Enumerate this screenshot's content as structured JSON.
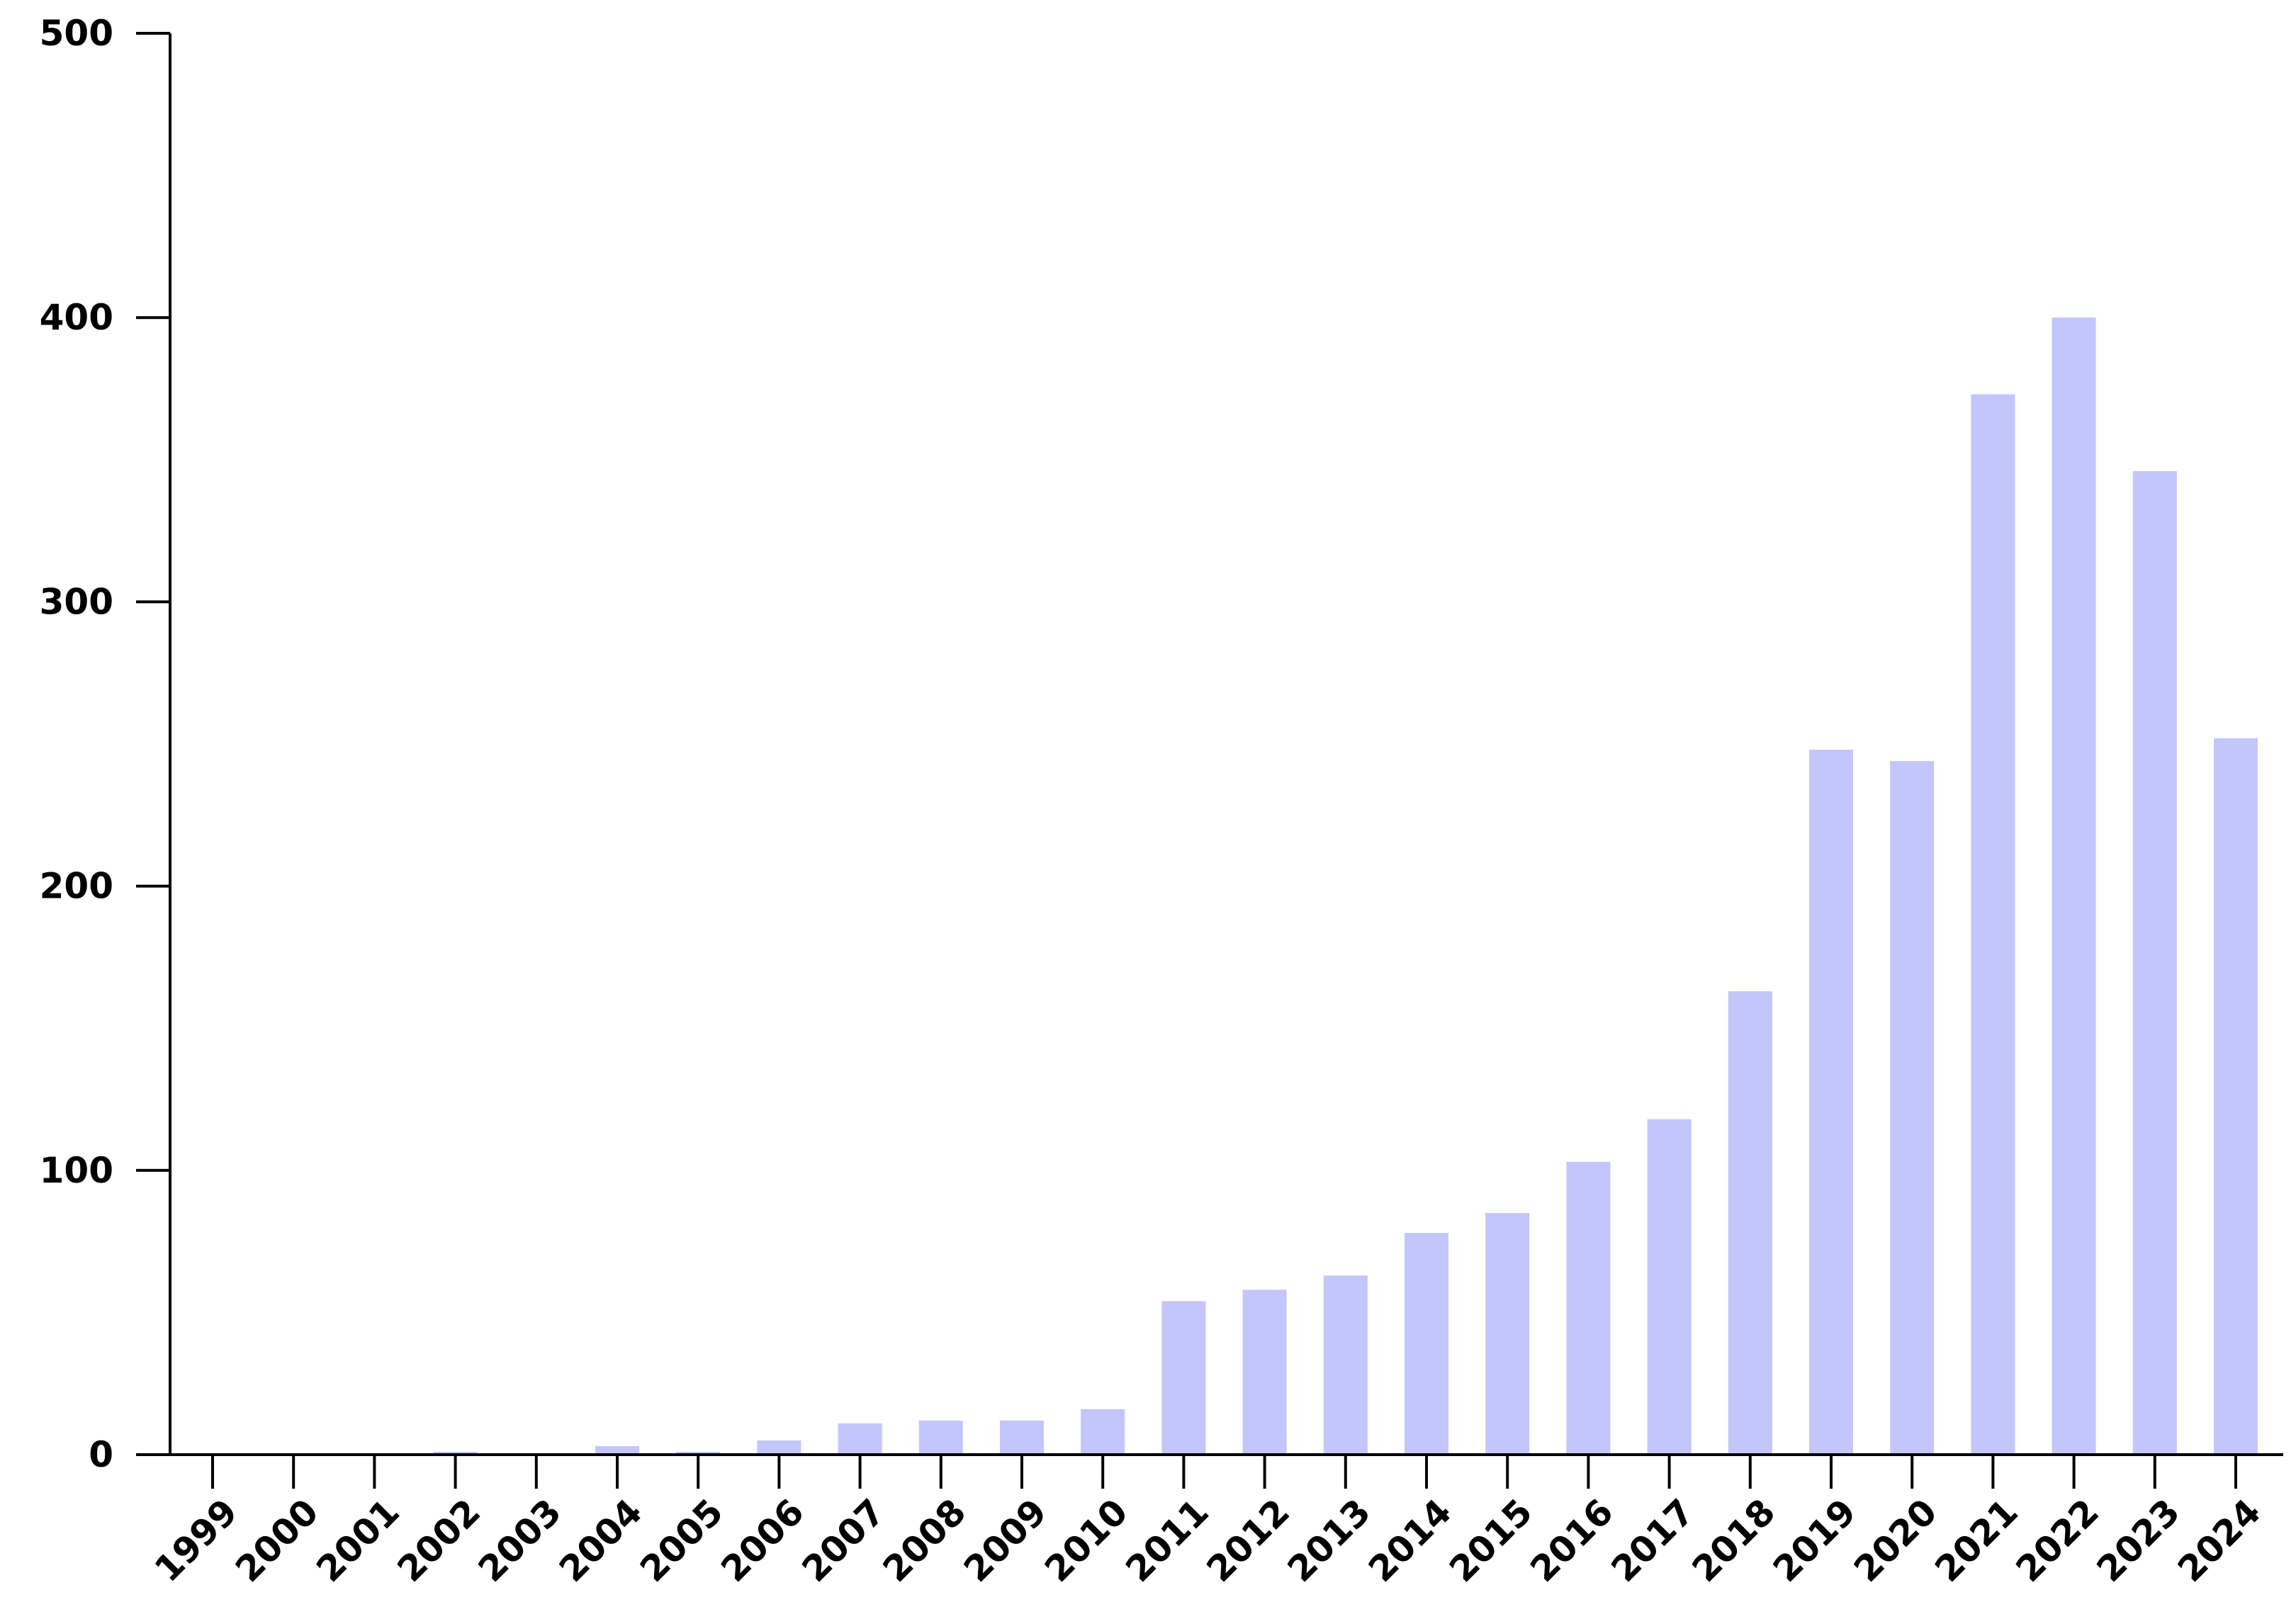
{
  "chart_data": {
    "type": "bar",
    "title": "",
    "xlabel": "",
    "ylabel": "",
    "categories": [
      "1999",
      "2000",
      "2001",
      "2002",
      "2003",
      "2004",
      "2005",
      "2006",
      "2007",
      "2008",
      "2009",
      "2010",
      "2011",
      "2012",
      "2013",
      "2014",
      "2015",
      "2016",
      "2017",
      "2018",
      "2019",
      "2020",
      "2021",
      "2022",
      "2023",
      "2024"
    ],
    "values": [
      0,
      0,
      0,
      1,
      0,
      3,
      1,
      5,
      11,
      12,
      12,
      16,
      54,
      58,
      63,
      78,
      85,
      103,
      118,
      163,
      248,
      244,
      373,
      400,
      346,
      252
    ],
    "ylim": [
      0,
      500
    ],
    "yticks": [
      0,
      100,
      200,
      300,
      400,
      500
    ],
    "bar_color": "#c3c6fb",
    "axis_color": "#000000",
    "grid": false,
    "legend": "none"
  }
}
